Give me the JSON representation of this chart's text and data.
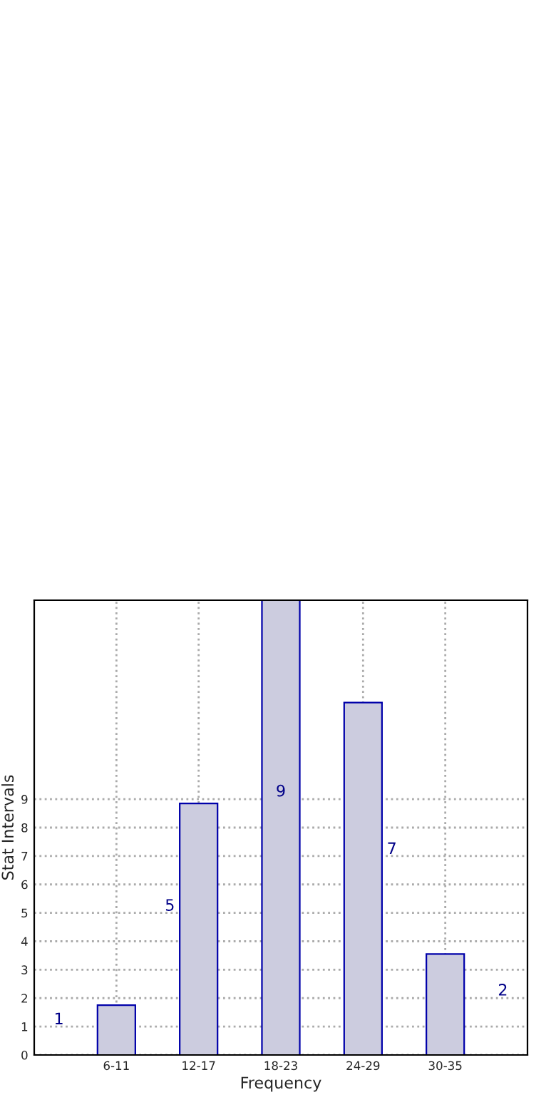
{
  "chart_data": {
    "type": "bar",
    "categories": [
      "6-11",
      "12-17",
      "18-23",
      "24-29",
      "30-35"
    ],
    "series": [
      {
        "color": "#ccccdf",
        "values": [
          1.75,
          8.85,
          16,
          12.4,
          3.55
        ]
      }
    ],
    "xlabel": "Frequency",
    "ylabel": "Stat Intervals",
    "ylim": [
      0,
      16
    ],
    "yticks": [
      0,
      1,
      2,
      3,
      4,
      5,
      6,
      7,
      8,
      9
    ],
    "grid": true,
    "annotations": [
      "1",
      "5",
      "9",
      "7",
      "2"
    ]
  }
}
